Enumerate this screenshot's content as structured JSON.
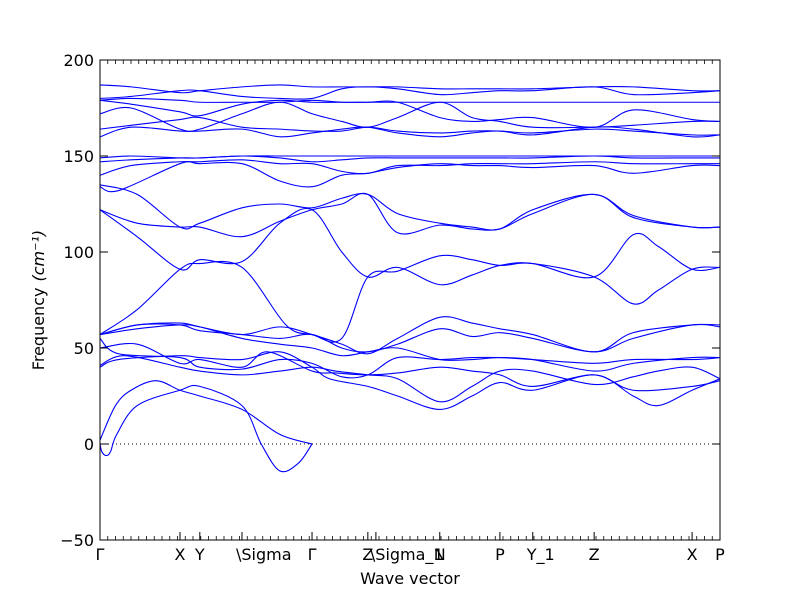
{
  "chart_data": {
    "type": "line",
    "xlabel": "Wave vector",
    "ylabel": "Frequency",
    "ylabel_unit": "(cm⁻¹)",
    "ylim": [
      -50,
      200
    ],
    "xlim": [
      0,
      1
    ],
    "yticks": [
      -50,
      0,
      50,
      100,
      150,
      200
    ],
    "zero_line": true,
    "grid": false,
    "line_color": "#0000ff",
    "kpoints": [
      {
        "label": "Γ",
        "x": 0.0
      },
      {
        "label": "X",
        "x": 0.129
      },
      {
        "label": "Y",
        "x": 0.161
      },
      {
        "label": "\\Sigma",
        "x": 0.229
      },
      {
        "label": "Γ",
        "x": 0.342
      },
      {
        "label": "Z",
        "x": 0.432
      },
      {
        "label": "\\Sigma_1",
        "x": 0.445
      },
      {
        "label": "N",
        "x": 0.548
      },
      {
        "label": "P",
        "x": 0.645
      },
      {
        "label": "Y_1",
        "x": 0.698
      },
      {
        "label": "Z",
        "x": 0.797
      },
      {
        "label": "X",
        "x": 0.955
      },
      {
        "label": "P",
        "x": 1.0
      }
    ],
    "series": [
      {
        "x": [
          0.0,
          0.025,
          0.05,
          0.09,
          0.129,
          0.161,
          0.229,
          0.29,
          0.342
        ],
        "values": [
          2,
          20,
          28,
          33,
          28,
          25,
          18,
          5,
          0
        ]
      },
      {
        "x": [
          0.0,
          0.003,
          0.01,
          0.017,
          0.027,
          0.06,
          0.129,
          0.161,
          0.229,
          0.26,
          0.29,
          0.32,
          0.342
        ],
        "values": [
          0,
          -4,
          -6,
          -4,
          5,
          20,
          28,
          30,
          20,
          0,
          -14,
          -10,
          0
        ]
      },
      {
        "x": [
          0.0,
          0.03,
          0.129,
          0.161,
          0.229,
          0.29,
          0.342,
          0.37,
          0.432,
          0.48,
          0.548,
          0.6,
          0.645,
          0.698,
          0.797,
          0.86,
          0.9,
          0.955,
          1.0
        ],
        "values": [
          40,
          44,
          46,
          45,
          44,
          48,
          40,
          34,
          30,
          25,
          18,
          25,
          32,
          28,
          36,
          25,
          20,
          28,
          34
        ]
      },
      {
        "x": [
          0.0,
          0.04,
          0.129,
          0.161,
          0.229,
          0.29,
          0.342,
          0.38,
          0.432,
          0.48,
          0.548,
          0.6,
          0.645,
          0.698,
          0.797,
          0.86,
          0.9,
          0.955,
          1.0
        ],
        "values": [
          41,
          46,
          40,
          38,
          36,
          38,
          40,
          38,
          36,
          34,
          22,
          30,
          38,
          38,
          31,
          35,
          38,
          40,
          34
        ]
      },
      {
        "x": [
          0.0,
          0.06,
          0.129,
          0.161,
          0.229,
          0.27,
          0.342,
          0.38,
          0.432,
          0.48,
          0.548,
          0.6,
          0.645,
          0.698,
          0.797,
          0.86,
          0.955,
          1.0
        ],
        "values": [
          50,
          52,
          42,
          44,
          40,
          48,
          38,
          37,
          36,
          37,
          40,
          38,
          36,
          30,
          36,
          28,
          30,
          33
        ]
      },
      {
        "x": [
          0.0,
          0.03,
          0.129,
          0.161,
          0.229,
          0.29,
          0.342,
          0.39,
          0.432,
          0.48,
          0.548,
          0.6,
          0.645,
          0.698,
          0.797,
          0.86,
          0.955,
          1.0
        ],
        "values": [
          55,
          47,
          45,
          40,
          39,
          44,
          42,
          35,
          36,
          45,
          44,
          45,
          45,
          44,
          42,
          44,
          44,
          45
        ]
      },
      {
        "x": [
          0.0,
          0.06,
          0.129,
          0.161,
          0.229,
          0.29,
          0.342,
          0.39,
          0.432,
          0.48,
          0.548,
          0.6,
          0.645,
          0.698,
          0.797,
          0.86,
          0.955,
          1.0
        ],
        "values": [
          57,
          60,
          62,
          61,
          55,
          52,
          50,
          46,
          48,
          50,
          44,
          44,
          45,
          44,
          38,
          42,
          45,
          45
        ]
      },
      {
        "x": [
          0.0,
          0.06,
          0.129,
          0.161,
          0.229,
          0.29,
          0.342,
          0.39,
          0.432,
          0.48,
          0.548,
          0.6,
          0.645,
          0.698,
          0.797,
          0.86,
          0.955,
          1.0
        ],
        "values": [
          57,
          62,
          62,
          59,
          57,
          55,
          57,
          50,
          48,
          52,
          60,
          56,
          58,
          55,
          48,
          55,
          62,
          61
        ]
      },
      {
        "x": [
          0.0,
          0.06,
          0.129,
          0.161,
          0.229,
          0.29,
          0.342,
          0.39,
          0.432,
          0.48,
          0.548,
          0.6,
          0.645,
          0.698,
          0.797,
          0.86,
          0.955,
          1.0
        ],
        "values": [
          57,
          62,
          63,
          61,
          57,
          61,
          57,
          52,
          47,
          55,
          66,
          63,
          60,
          57,
          48,
          58,
          62,
          62
        ]
      },
      {
        "x": [
          0.0,
          0.06,
          0.129,
          0.161,
          0.229,
          0.3,
          0.342,
          0.39,
          0.432,
          0.48,
          0.548,
          0.6,
          0.645,
          0.698,
          0.797,
          0.86,
          0.9,
          0.955,
          1.0
        ],
        "values": [
          57,
          70,
          91,
          94,
          92,
          62,
          57,
          55,
          87,
          90,
          98,
          96,
          93,
          94,
          87,
          73,
          80,
          91,
          92
        ]
      },
      {
        "x": [
          0.0,
          0.06,
          0.129,
          0.161,
          0.229,
          0.29,
          0.342,
          0.39,
          0.432,
          0.48,
          0.548,
          0.6,
          0.645,
          0.698,
          0.797,
          0.86,
          0.9,
          0.955,
          1.0
        ],
        "values": [
          122,
          108,
          91,
          96,
          95,
          115,
          122,
          100,
          87,
          92,
          83,
          88,
          93,
          94,
          87,
          109,
          103,
          91,
          92
        ]
      },
      {
        "x": [
          0.0,
          0.06,
          0.129,
          0.161,
          0.229,
          0.29,
          0.342,
          0.39,
          0.432,
          0.48,
          0.548,
          0.6,
          0.645,
          0.698,
          0.797,
          0.86,
          0.955,
          1.0
        ],
        "values": [
          122,
          115,
          113,
          113,
          108,
          116,
          122,
          125,
          130,
          110,
          114,
          112,
          112,
          120,
          130,
          118,
          113,
          113
        ]
      },
      {
        "x": [
          0.0,
          0.06,
          0.129,
          0.161,
          0.229,
          0.29,
          0.342,
          0.39,
          0.432,
          0.48,
          0.548,
          0.6,
          0.645,
          0.698,
          0.797,
          0.86,
          0.955,
          1.0
        ],
        "values": [
          135,
          130,
          113,
          115,
          123,
          125,
          123,
          128,
          130,
          120,
          115,
          113,
          112,
          122,
          130,
          119,
          113,
          113
        ]
      },
      {
        "x": [
          0.0,
          0.03,
          0.129,
          0.161,
          0.229,
          0.29,
          0.342,
          0.39,
          0.432,
          0.48,
          0.548,
          0.6,
          0.645,
          0.698,
          0.797,
          0.86,
          0.955,
          1.0
        ],
        "values": [
          134,
          132,
          146,
          146,
          146,
          137,
          134,
          140,
          141,
          144,
          146,
          145,
          145,
          144,
          145,
          141,
          145,
          145
        ]
      },
      {
        "x": [
          0.0,
          0.05,
          0.129,
          0.161,
          0.229,
          0.29,
          0.342,
          0.39,
          0.432,
          0.48,
          0.548,
          0.6,
          0.645,
          0.698,
          0.797,
          0.86,
          0.955,
          1.0
        ],
        "values": [
          140,
          145,
          147,
          147,
          148,
          146,
          146,
          142,
          141,
          145,
          145,
          146,
          146,
          146,
          147,
          146,
          146,
          146
        ]
      },
      {
        "x": [
          0.0,
          0.05,
          0.129,
          0.161,
          0.229,
          0.29,
          0.342,
          0.39,
          0.432,
          0.48,
          0.548,
          0.6,
          0.645,
          0.698,
          0.797,
          0.86,
          0.955,
          1.0
        ],
        "values": [
          147,
          148,
          149,
          149,
          150,
          149,
          147,
          148,
          149,
          149,
          149,
          149,
          149,
          149,
          150,
          149,
          149,
          149
        ]
      },
      {
        "x": [
          0.0,
          0.05,
          0.129,
          0.161,
          0.229,
          0.29,
          0.342,
          0.39,
          0.432,
          0.48,
          0.548,
          0.6,
          0.645,
          0.698,
          0.797,
          0.86,
          0.955,
          1.0
        ],
        "values": [
          149,
          150,
          149,
          149,
          150,
          150,
          150,
          150,
          150,
          150,
          150,
          150,
          150,
          150,
          150,
          150,
          150,
          150
        ]
      },
      {
        "x": [
          0.0,
          0.05,
          0.129,
          0.161,
          0.229,
          0.29,
          0.342,
          0.39,
          0.432,
          0.48,
          0.548,
          0.6,
          0.645,
          0.698,
          0.797,
          0.86,
          0.955,
          1.0
        ],
        "values": [
          160,
          165,
          163,
          163,
          164,
          160,
          162,
          164,
          165,
          162,
          160,
          162,
          163,
          161,
          165,
          164,
          160,
          161
        ]
      },
      {
        "x": [
          0.0,
          0.05,
          0.129,
          0.161,
          0.229,
          0.29,
          0.342,
          0.39,
          0.432,
          0.48,
          0.548,
          0.6,
          0.645,
          0.698,
          0.797,
          0.86,
          0.955,
          1.0
        ],
        "values": [
          164,
          166,
          169,
          170,
          165,
          164,
          163,
          163,
          165,
          163,
          162,
          163,
          163,
          162,
          164,
          163,
          161,
          161
        ]
      },
      {
        "x": [
          0.0,
          0.05,
          0.129,
          0.161,
          0.229,
          0.29,
          0.342,
          0.39,
          0.432,
          0.48,
          0.548,
          0.6,
          0.645,
          0.698,
          0.797,
          0.86,
          0.955,
          1.0
        ],
        "values": [
          172,
          175,
          164,
          164,
          172,
          178,
          172,
          168,
          165,
          170,
          178,
          170,
          168,
          165,
          165,
          166,
          168,
          168
        ]
      },
      {
        "x": [
          0.0,
          0.05,
          0.129,
          0.161,
          0.229,
          0.29,
          0.342,
          0.39,
          0.432,
          0.48,
          0.548,
          0.6,
          0.645,
          0.698,
          0.797,
          0.86,
          0.955,
          1.0
        ],
        "values": [
          179,
          177,
          173,
          171,
          177,
          179,
          178,
          178,
          178,
          178,
          170,
          168,
          169,
          170,
          165,
          174,
          169,
          168
        ]
      },
      {
        "x": [
          0.0,
          0.05,
          0.129,
          0.161,
          0.229,
          0.29,
          0.342,
          0.39,
          0.432,
          0.48,
          0.548,
          0.6,
          0.645,
          0.698,
          0.797,
          0.86,
          0.955,
          1.0
        ],
        "values": [
          179,
          180,
          179,
          178,
          178,
          178,
          179,
          178,
          178,
          178,
          178,
          178,
          178,
          178,
          178,
          178,
          178,
          178
        ]
      },
      {
        "x": [
          0.0,
          0.05,
          0.129,
          0.161,
          0.229,
          0.29,
          0.342,
          0.39,
          0.432,
          0.48,
          0.548,
          0.6,
          0.645,
          0.698,
          0.797,
          0.86,
          0.955,
          1.0
        ],
        "values": [
          180,
          181,
          184,
          184,
          181,
          180,
          180,
          185,
          186,
          185,
          182,
          183,
          184,
          184,
          186,
          182,
          183,
          184
        ]
      },
      {
        "x": [
          0.0,
          0.05,
          0.129,
          0.161,
          0.229,
          0.29,
          0.342,
          0.39,
          0.432,
          0.48,
          0.548,
          0.6,
          0.645,
          0.698,
          0.797,
          0.86,
          0.955,
          1.0
        ],
        "values": [
          187,
          186,
          183,
          184,
          186,
          187,
          186,
          186,
          186,
          186,
          185,
          185,
          185,
          185,
          186,
          186,
          184,
          184
        ]
      }
    ]
  }
}
